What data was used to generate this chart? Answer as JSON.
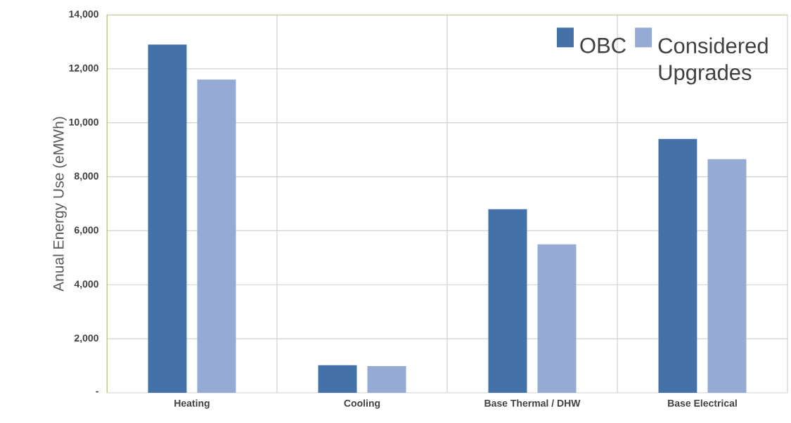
{
  "chart_data": {
    "type": "bar",
    "ylabel": "Anual Energy Use (eMWh)",
    "categories": [
      "Heating",
      "Cooling",
      "Base Thermal / DHW",
      "Base Electrical"
    ],
    "series": [
      {
        "name": "OBC",
        "color": "#4472a8",
        "values": [
          12900,
          1020,
          6800,
          9400
        ]
      },
      {
        "name": "Considered Upgrades",
        "color": "#95abd3",
        "values": [
          11600,
          990,
          5500,
          8650
        ]
      }
    ],
    "ylim": [
      0,
      14000
    ],
    "yticks": [
      {
        "value": 0,
        "label": "-"
      },
      {
        "value": 2000,
        "label": "2,000"
      },
      {
        "value": 4000,
        "label": "4,000"
      },
      {
        "value": 6000,
        "label": "6,000"
      },
      {
        "value": 8000,
        "label": "8,000"
      },
      {
        "value": 10000,
        "label": "10,000"
      },
      {
        "value": 12000,
        "label": "12,000"
      },
      {
        "value": 14000,
        "label": "14,000"
      }
    ],
    "grid": true,
    "legend": "top right"
  }
}
